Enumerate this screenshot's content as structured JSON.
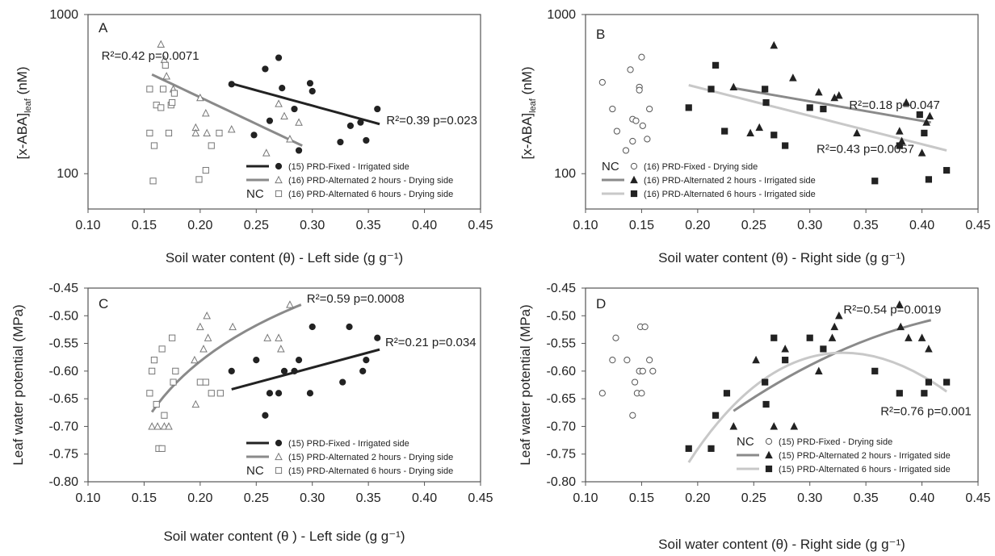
{
  "colors": {
    "black": "#222222",
    "mid": "#8a8a8a",
    "light": "#c8c8c8",
    "axis": "#555555"
  },
  "chart_data": [
    {
      "type": "scatter",
      "panel": "A",
      "xlabel": "Soil water content  (θ) - Left side (g g⁻¹)",
      "ylabel": "[x-ABA]leaf (nM)",
      "xlim": [
        0.1,
        0.45
      ],
      "ylim": [
        60,
        1000
      ],
      "log_y": true,
      "x_ticks": [
        "0.10",
        "0.15",
        "0.20",
        "0.25",
        "0.30",
        "0.35",
        "0.40",
        "0.45"
      ],
      "y_ticks": [
        "100",
        "1000"
      ],
      "series": [
        {
          "name": "(15) PRD-Fixed - Irrigated side",
          "marker": "filled-circle",
          "color": "#222222",
          "points": [
            [
              0.228,
              365
            ],
            [
              0.248,
              175
            ],
            [
              0.258,
              455
            ],
            [
              0.262,
              215
            ],
            [
              0.27,
              535
            ],
            [
              0.273,
              345
            ],
            [
              0.284,
              255
            ],
            [
              0.288,
              140
            ],
            [
              0.298,
              370
            ],
            [
              0.3,
              330
            ],
            [
              0.325,
              158
            ],
            [
              0.334,
              200
            ],
            [
              0.343,
              210
            ],
            [
              0.348,
              162
            ],
            [
              0.358,
              255
            ]
          ]
        },
        {
          "name": "(16) PRD-Alternated 2 hours - Drying side",
          "marker": "open-triangle",
          "color": "#777777",
          "points": [
            [
              0.165,
              650
            ],
            [
              0.168,
              520
            ],
            [
              0.17,
              410
            ],
            [
              0.176,
              340
            ],
            [
              0.196,
              195
            ],
            [
              0.196,
              180
            ],
            [
              0.2,
              300
            ],
            [
              0.205,
              240
            ],
            [
              0.206,
              180
            ],
            [
              0.228,
              190
            ],
            [
              0.259,
              135
            ],
            [
              0.27,
              275
            ],
            [
              0.275,
              230
            ],
            [
              0.28,
              165
            ],
            [
              0.288,
              210
            ]
          ]
        },
        {
          "name": "(16) PRD-Alternated 6 hours - Drying side",
          "marker": "open-square",
          "color": "#777777",
          "points": [
            [
              0.155,
              340
            ],
            [
              0.155,
              180
            ],
            [
              0.158,
              90
            ],
            [
              0.159,
              150
            ],
            [
              0.161,
              270
            ],
            [
              0.165,
              260
            ],
            [
              0.167,
              340
            ],
            [
              0.169,
              480
            ],
            [
              0.172,
              180
            ],
            [
              0.174,
              270
            ],
            [
              0.175,
              280
            ],
            [
              0.177,
              320
            ],
            [
              0.199,
              92
            ],
            [
              0.205,
              105
            ],
            [
              0.21,
              150
            ],
            [
              0.217,
              180
            ]
          ]
        }
      ],
      "fits": [
        {
          "color": "#222222",
          "x0": 0.227,
          "y0": 370,
          "x1": 0.36,
          "y1": 205
        },
        {
          "color": "#8a8a8a",
          "x0": 0.157,
          "y0": 420,
          "x1": 0.291,
          "y1": 150
        }
      ],
      "annotations": [
        {
          "text": "R²=0.42 p=0.0071",
          "x": 0.112,
          "y": 520
        },
        {
          "text": "R²=0.39 p=0.023",
          "x": 0.366,
          "y": 205
        }
      ],
      "legend_nc": "NC"
    },
    {
      "type": "scatter",
      "panel": "B",
      "xlabel": "Soil water content (θ) - Right  side (g g⁻¹)",
      "ylabel": "[x-ABA]leaf (nM)",
      "xlim": [
        0.1,
        0.45
      ],
      "ylim": [
        60,
        1000
      ],
      "log_y": true,
      "x_ticks": [
        "0.10",
        "0.15",
        "0.20",
        "0.25",
        "0.30",
        "0.35",
        "0.40",
        "0.45"
      ],
      "y_ticks": [
        "100",
        "1000"
      ],
      "series": [
        {
          "name": "(16) PRD-Fixed - Drying side",
          "marker": "open-circle",
          "color": "#555555",
          "points": [
            [
              0.115,
              375
            ],
            [
              0.124,
              255
            ],
            [
              0.128,
              185
            ],
            [
              0.136,
              140
            ],
            [
              0.14,
              450
            ],
            [
              0.142,
              220
            ],
            [
              0.142,
              160
            ],
            [
              0.145,
              215
            ],
            [
              0.148,
              350
            ],
            [
              0.148,
              335
            ],
            [
              0.15,
              540
            ],
            [
              0.151,
              200
            ],
            [
              0.155,
              165
            ],
            [
              0.157,
              255
            ]
          ]
        },
        {
          "name": "(16) PRD-Alternated 2 hours - Irrigated side",
          "marker": "filled-triangle",
          "color": "#222222",
          "points": [
            [
              0.232,
              350
            ],
            [
              0.247,
              180
            ],
            [
              0.255,
              195
            ],
            [
              0.268,
              640
            ],
            [
              0.285,
              400
            ],
            [
              0.308,
              325
            ],
            [
              0.322,
              300
            ],
            [
              0.326,
              310
            ],
            [
              0.342,
              180
            ],
            [
              0.38,
              185
            ],
            [
              0.382,
              160
            ],
            [
              0.386,
              280
            ],
            [
              0.4,
              135
            ],
            [
              0.404,
              210
            ],
            [
              0.407,
              230
            ]
          ]
        },
        {
          "name": "(16) PRD-Alternated 6 hours - Irrigated side",
          "marker": "filled-square",
          "color": "#222222",
          "points": [
            [
              0.192,
              260
            ],
            [
              0.212,
              340
            ],
            [
              0.216,
              480
            ],
            [
              0.224,
              185
            ],
            [
              0.26,
              340
            ],
            [
              0.261,
              280
            ],
            [
              0.268,
              175
            ],
            [
              0.278,
              150
            ],
            [
              0.3,
              260
            ],
            [
              0.312,
              255
            ],
            [
              0.358,
              90
            ],
            [
              0.38,
              150
            ],
            [
              0.398,
              235
            ],
            [
              0.402,
              180
            ],
            [
              0.406,
              92
            ],
            [
              0.422,
              105
            ]
          ]
        }
      ],
      "fits": [
        {
          "color": "#8a8a8a",
          "x0": 0.232,
          "y0": 345,
          "x1": 0.408,
          "y1": 210
        },
        {
          "color": "#c8c8c8",
          "x0": 0.192,
          "y0": 360,
          "x1": 0.422,
          "y1": 140
        }
      ],
      "annotations": [
        {
          "text": "R²=0.18 p=0.047",
          "x": 0.335,
          "y": 255
        },
        {
          "text": "R²=0.43 p=0.0057",
          "x": 0.306,
          "y": 135
        }
      ],
      "legend_nc": "NC"
    },
    {
      "type": "scatter",
      "panel": "C",
      "xlabel": "Soil water content (θ ) - Left side (g g⁻¹)",
      "ylabel": "Leaf water potential (MPa)",
      "xlim": [
        0.1,
        0.45
      ],
      "ylim": [
        -0.8,
        -0.45
      ],
      "x_ticks": [
        "0.10",
        "0.15",
        "0.20",
        "0.25",
        "0.30",
        "0.35",
        "0.40",
        "0.45"
      ],
      "y_ticks": [
        "-0.45",
        "-0.50",
        "-0.55",
        "-0.60",
        "-0.65",
        "-0.70",
        "-0.75",
        "-0.80"
      ],
      "series": [
        {
          "name": "(15) PRD-Fixed - Irrigated side",
          "marker": "filled-circle",
          "color": "#222222",
          "points": [
            [
              0.228,
              -0.6
            ],
            [
              0.25,
              -0.58
            ],
            [
              0.258,
              -0.68
            ],
            [
              0.262,
              -0.64
            ],
            [
              0.27,
              -0.64
            ],
            [
              0.275,
              -0.6
            ],
            [
              0.284,
              -0.6
            ],
            [
              0.288,
              -0.58
            ],
            [
              0.298,
              -0.64
            ],
            [
              0.3,
              -0.52
            ],
            [
              0.327,
              -0.62
            ],
            [
              0.333,
              -0.52
            ],
            [
              0.345,
              -0.6
            ],
            [
              0.348,
              -0.58
            ],
            [
              0.358,
              -0.54
            ]
          ]
        },
        {
          "name": "(15) PRD-Alternated 2 hours - Drying side",
          "marker": "open-triangle",
          "color": "#777777",
          "points": [
            [
              0.157,
              -0.7
            ],
            [
              0.162,
              -0.7
            ],
            [
              0.168,
              -0.7
            ],
            [
              0.172,
              -0.7
            ],
            [
              0.195,
              -0.58
            ],
            [
              0.196,
              -0.66
            ],
            [
              0.2,
              -0.52
            ],
            [
              0.203,
              -0.56
            ],
            [
              0.206,
              -0.5
            ],
            [
              0.207,
              -0.54
            ],
            [
              0.229,
              -0.52
            ],
            [
              0.26,
              -0.54
            ],
            [
              0.27,
              -0.54
            ],
            [
              0.272,
              -0.56
            ],
            [
              0.28,
              -0.48
            ]
          ]
        },
        {
          "name": "(15) PRD-Alternated 6 hours - Drying side",
          "marker": "open-square",
          "color": "#777777",
          "points": [
            [
              0.155,
              -0.64
            ],
            [
              0.157,
              -0.6
            ],
            [
              0.159,
              -0.58
            ],
            [
              0.161,
              -0.66
            ],
            [
              0.163,
              -0.74
            ],
            [
              0.166,
              -0.74
            ],
            [
              0.166,
              -0.56
            ],
            [
              0.168,
              -0.68
            ],
            [
              0.175,
              -0.54
            ],
            [
              0.176,
              -0.62
            ],
            [
              0.178,
              -0.6
            ],
            [
              0.2,
              -0.62
            ],
            [
              0.205,
              -0.62
            ],
            [
              0.21,
              -0.64
            ],
            [
              0.218,
              -0.64
            ]
          ]
        }
      ],
      "fits": [
        {
          "color": "#222222",
          "x0": 0.228,
          "y0": -0.633,
          "x1": 0.36,
          "y1": -0.561
        },
        {
          "color": "#8a8a8a",
          "curve": true,
          "x0": 0.157,
          "y0": -0.674,
          "xm": 0.21,
          "ym": -0.567,
          "x1": 0.29,
          "y1": -0.48
        }
      ],
      "annotations": [
        {
          "text": "R²=0.59 p=0.0008",
          "x": 0.295,
          "y": -0.476
        },
        {
          "text": "R²=0.21 p=0.034",
          "x": 0.365,
          "y": -0.555
        }
      ],
      "legend_nc": "NC"
    },
    {
      "type": "scatter",
      "panel": "D",
      "xlabel": "Soil water content (θ) -  Right side (g g⁻¹)",
      "ylabel": "Leaf water potential (MPa)",
      "xlim": [
        0.1,
        0.45
      ],
      "ylim": [
        -0.8,
        -0.45
      ],
      "x_ticks": [
        "0.10",
        "0.15",
        "0.20",
        "0.25",
        "0.30",
        "0.35",
        "0.40",
        "0.45"
      ],
      "y_ticks": [
        "-0.45",
        "-0.50",
        "-0.55",
        "-0.60",
        "-0.65",
        "-0.70",
        "-0.75",
        "-0.80"
      ],
      "series": [
        {
          "name": "(15) PRD-Fixed - Drying side",
          "marker": "open-circle",
          "color": "#555555",
          "points": [
            [
              0.115,
              -0.64
            ],
            [
              0.124,
              -0.58
            ],
            [
              0.127,
              -0.54
            ],
            [
              0.137,
              -0.58
            ],
            [
              0.142,
              -0.68
            ],
            [
              0.144,
              -0.62
            ],
            [
              0.146,
              -0.64
            ],
            [
              0.148,
              -0.6
            ],
            [
              0.149,
              -0.52
            ],
            [
              0.15,
              -0.64
            ],
            [
              0.151,
              -0.6
            ],
            [
              0.153,
              -0.52
            ],
            [
              0.157,
              -0.58
            ],
            [
              0.16,
              -0.6
            ]
          ]
        },
        {
          "name": "(15) PRD-Alternated 2 hours - Irrigated side",
          "marker": "filled-triangle",
          "color": "#222222",
          "points": [
            [
              0.232,
              -0.7
            ],
            [
              0.252,
              -0.58
            ],
            [
              0.268,
              -0.7
            ],
            [
              0.278,
              -0.56
            ],
            [
              0.286,
              -0.7
            ],
            [
              0.308,
              -0.6
            ],
            [
              0.32,
              -0.54
            ],
            [
              0.322,
              -0.52
            ],
            [
              0.326,
              -0.5
            ],
            [
              0.38,
              -0.48
            ],
            [
              0.381,
              -0.52
            ],
            [
              0.388,
              -0.54
            ],
            [
              0.4,
              -0.54
            ],
            [
              0.406,
              -0.56
            ]
          ]
        },
        {
          "name": "(15) PRD-Alternated 6 hours - Irrigated side",
          "marker": "filled-square",
          "color": "#222222",
          "points": [
            [
              0.192,
              -0.74
            ],
            [
              0.212,
              -0.74
            ],
            [
              0.216,
              -0.68
            ],
            [
              0.226,
              -0.64
            ],
            [
              0.26,
              -0.62
            ],
            [
              0.261,
              -0.66
            ],
            [
              0.268,
              -0.54
            ],
            [
              0.278,
              -0.58
            ],
            [
              0.3,
              -0.54
            ],
            [
              0.312,
              -0.56
            ],
            [
              0.358,
              -0.6
            ],
            [
              0.38,
              -0.64
            ],
            [
              0.402,
              -0.64
            ],
            [
              0.406,
              -0.62
            ],
            [
              0.422,
              -0.62
            ]
          ]
        }
      ],
      "fits": [
        {
          "color": "#8a8a8a",
          "curve": true,
          "x0": 0.232,
          "y0": -0.672,
          "xm": 0.32,
          "ym": -0.57,
          "x1": 0.408,
          "y1": -0.508
        },
        {
          "color": "#c8c8c8",
          "curve": true,
          "x0": 0.192,
          "y0": -0.765,
          "xm": 0.3,
          "ym": -0.575,
          "x1": 0.422,
          "y1": -0.637
        }
      ],
      "annotations": [
        {
          "text": "R²=0.54 p=0.0019",
          "x": 0.33,
          "y": -0.496
        },
        {
          "text": "R²=0.76 p=0.001",
          "x": 0.363,
          "y": -0.68
        }
      ],
      "legend_nc": "NC"
    }
  ]
}
